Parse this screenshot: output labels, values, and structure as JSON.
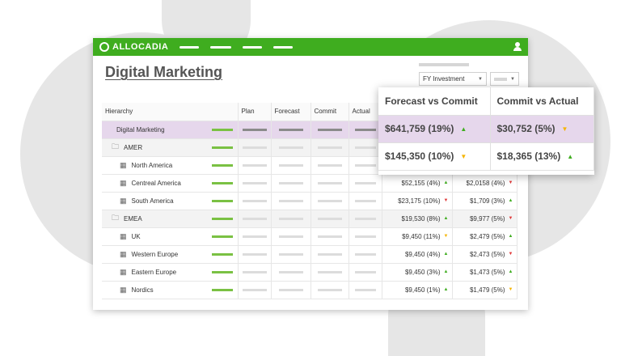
{
  "brand": {
    "name": "ALLOCADIA",
    "accent": "#3fad1f"
  },
  "page": {
    "title": "Digital Marketing"
  },
  "filters": {
    "selected": "FY Investment"
  },
  "table": {
    "headers": {
      "hierarchy": "Hierarchy",
      "plan": "Plan",
      "forecast": "Forecast",
      "commit": "Commit",
      "actual": "Actual"
    },
    "rows": [
      {
        "name": "Digital Marketing",
        "fc": "",
        "ca": "",
        "fc_arrow": "",
        "ca_arrow": ""
      },
      {
        "name": "AMER",
        "fc": "",
        "ca": "",
        "fc_arrow": "",
        "ca_arrow": ""
      },
      {
        "name": "North America",
        "fc": "",
        "ca": "",
        "fc_arrow": "",
        "ca_arrow": ""
      },
      {
        "name": "Centreal America",
        "fc": "$52,155 (4%)",
        "ca": "$2,0158 (4%)",
        "fc_arrow": "▲",
        "ca_arrow": "▼"
      },
      {
        "name": "South America",
        "fc": "$23,175 (10%)",
        "ca": "$1,709 (3%)",
        "fc_arrow": "▼",
        "ca_arrow": "▲"
      },
      {
        "name": "EMEA",
        "fc": "$19,530 (8%)",
        "ca": "$9,977 (5%)",
        "fc_arrow": "▲",
        "ca_arrow": "▼"
      },
      {
        "name": "UK",
        "fc": "$9,450 (11%)",
        "ca": "$2,479 (5%)",
        "fc_arrow": "▼",
        "ca_arrow": "▲"
      },
      {
        "name": "Western Europe",
        "fc": "$9,450 (4%)",
        "ca": "$2,473 (5%)",
        "fc_arrow": "▲",
        "ca_arrow": "▼"
      },
      {
        "name": "Eastern Europe",
        "fc": "$9,450 (3%)",
        "ca": "$1,473 (5%)",
        "fc_arrow": "▲",
        "ca_arrow": "▲"
      },
      {
        "name": "Nordics",
        "fc": "$9,450 (1%)",
        "ca": "$1,479 (5%)",
        "fc_arrow": "▲",
        "ca_arrow": "▼"
      }
    ]
  },
  "popover": {
    "headers": {
      "fc": "Forecast vs Commit",
      "ca": "Commit vs Actual"
    },
    "rows": [
      {
        "fc": "$641,759 (19%)",
        "fc_arrow": "▲",
        "ca": "$30,752 (5%)",
        "ca_arrow": "▼"
      },
      {
        "fc": "$145,350 (10%)",
        "fc_arrow": "▼",
        "ca": "$18,365 (13%)",
        "ca_arrow": "▲"
      }
    ]
  }
}
